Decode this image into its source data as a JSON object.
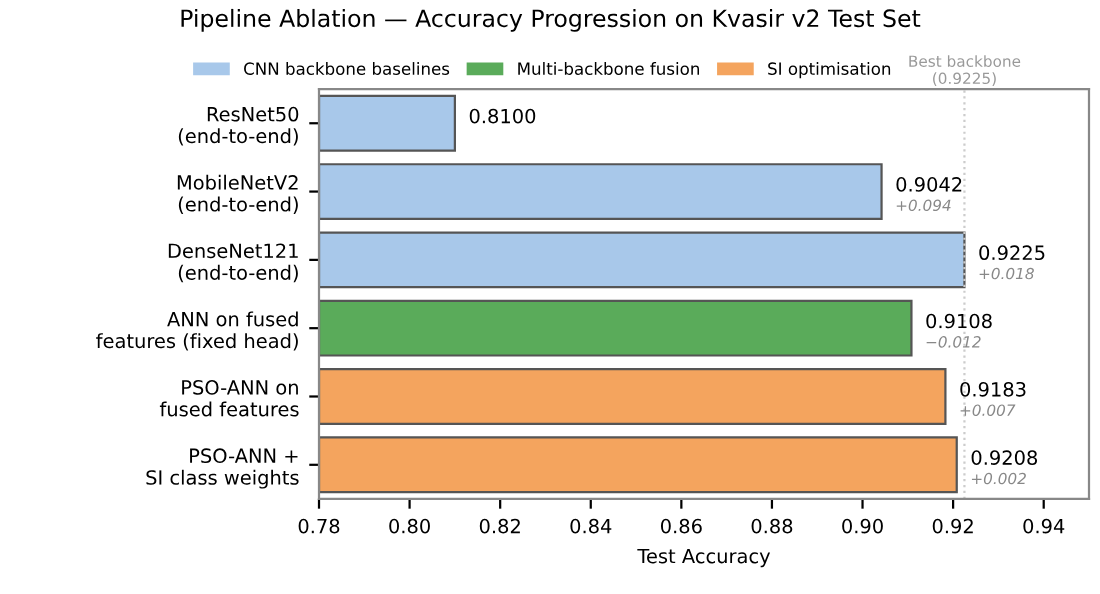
{
  "chart_data": {
    "type": "bar",
    "orientation": "horizontal",
    "title": "Pipeline Ablation — Accuracy Progression on Kvasir v2 Test Set",
    "xlabel": "Test Accuracy",
    "categories": [
      "ResNet50\n(end-to-end)",
      "MobileNetV2\n(end-to-end)",
      "DenseNet121\n(end-to-end)",
      "ANN on fused\nfeatures (fixed head)",
      "PSO-ANN on\nfused features",
      "PSO-ANN +\nSI class weights"
    ],
    "series": [
      {
        "name": "CNN backbone baselines",
        "color": "#a8c8ea",
        "values": [
          0.81,
          0.9042,
          0.9225,
          null,
          null,
          null
        ],
        "value_labels": [
          "0.8100",
          "0.9042",
          "0.9225",
          null,
          null,
          null
        ]
      },
      {
        "name": "Multi-backbone fusion",
        "color": "#5aab5a",
        "values": [
          null,
          null,
          null,
          0.9108,
          null,
          null
        ],
        "value_labels": [
          null,
          null,
          null,
          "0.9108",
          null,
          null
        ]
      },
      {
        "name": "SI optimisation",
        "color": "#f4a45e",
        "values": [
          null,
          null,
          null,
          null,
          0.9183,
          0.9208
        ],
        "value_labels": [
          null,
          null,
          null,
          null,
          "0.9183",
          "0.9208"
        ]
      }
    ],
    "annotations": [
      {
        "text": "+0.094",
        "x": 0.9042,
        "y": "MobileNetV2\n(end-to-end)"
      },
      {
        "text": "+0.018",
        "x": 0.9225,
        "y": "DenseNet121\n(end-to-end)"
      },
      {
        "text": "−0.012",
        "x": 0.9108,
        "y": "ANN on fused\nfeatures (fixed head)"
      },
      {
        "text": "+0.007",
        "x": 0.9183,
        "y": "PSO-ANN on\nfused features"
      },
      {
        "text": "+0.002",
        "x": 0.9208,
        "y": "PSO-ANN +\nSI class weights"
      }
    ],
    "ref_lines": [
      {
        "axis": "x",
        "value": 0.9225,
        "label": "Best backbone\n(0.9225)",
        "color": "#cccccc",
        "line_style": "dotted"
      }
    ],
    "xlim": [
      0.78,
      0.95
    ],
    "xticks": [
      {
        "value": 0.78,
        "label": "0.78"
      },
      {
        "value": 0.8,
        "label": "0.80"
      },
      {
        "value": 0.82,
        "label": "0.82"
      },
      {
        "value": 0.84,
        "label": "0.84"
      },
      {
        "value": 0.86,
        "label": "0.86"
      },
      {
        "value": 0.88,
        "label": "0.88"
      },
      {
        "value": 0.9,
        "label": "0.90"
      },
      {
        "value": 0.92,
        "label": "0.92"
      },
      {
        "value": 0.94,
        "label": "0.94"
      }
    ],
    "legend": "top",
    "grid": false
  }
}
